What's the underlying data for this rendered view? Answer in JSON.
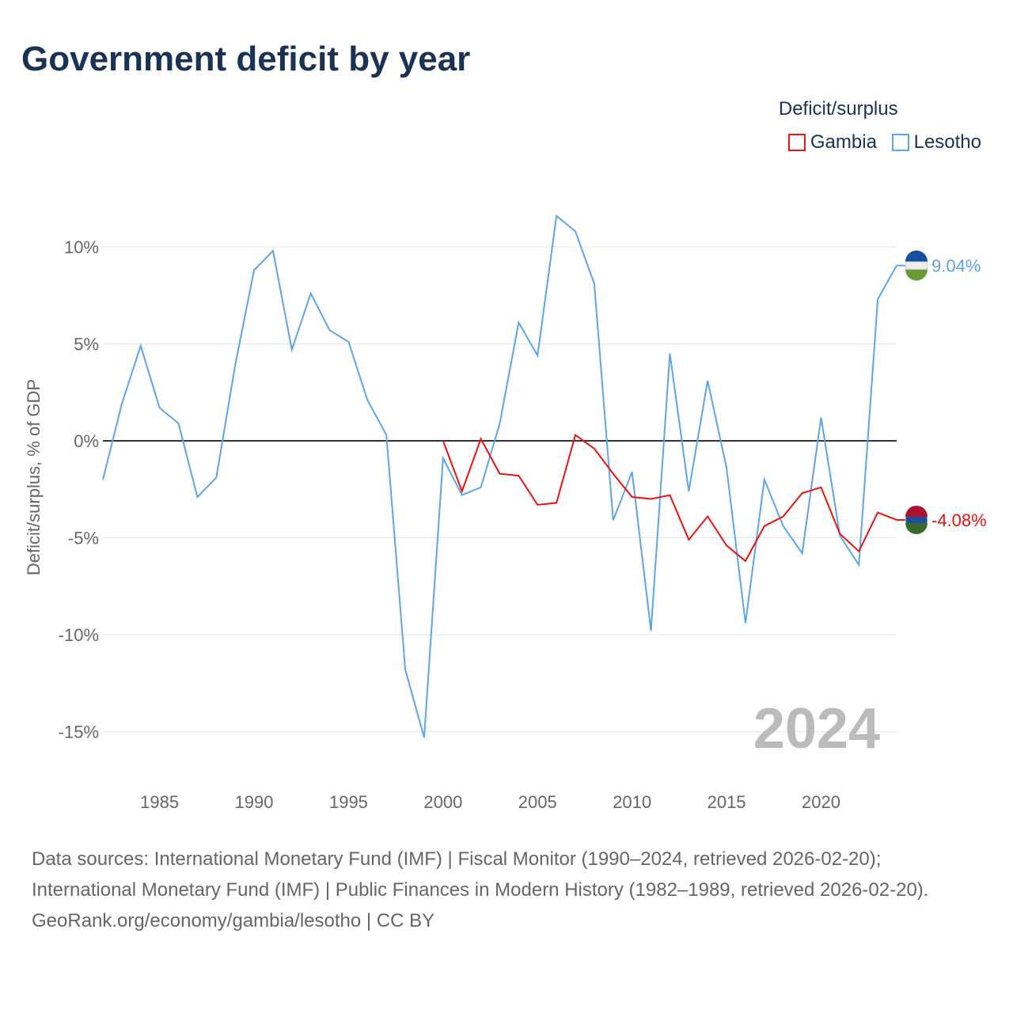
{
  "title": "Government deficit by year",
  "legend": {
    "title": "Deficit/surplus",
    "items": [
      "Gambia",
      "Lesotho"
    ]
  },
  "footer": {
    "sources": "Data sources: International Monetary Fund (IMF) | Fiscal Monitor (1990–2024, retrieved 2026-02-20); International Monetary Fund (IMF) | Public Finances in Modern History (1982–1989, retrieved 2026-02-20).",
    "credit": "GeoRank.org/economy/gambia/lesotho | CC BY"
  },
  "chart_data": {
    "type": "line",
    "title": "Government deficit by year",
    "ylabel": "Deficit/surplus, % of GDP",
    "xlim": [
      1982,
      2024
    ],
    "ylim": [
      -17,
      12
    ],
    "xticks": [
      1985,
      1990,
      1995,
      2000,
      2005,
      2010,
      2015,
      2020
    ],
    "yticks": [
      {
        "v": 10,
        "l": "10%"
      },
      {
        "v": 5,
        "l": "5%"
      },
      {
        "v": 0,
        "l": "0%"
      },
      {
        "v": -5,
        "l": "-5%"
      },
      {
        "v": -10,
        "l": "-10%"
      },
      {
        "v": -15,
        "l": "-15%"
      }
    ],
    "year_label": "2024",
    "series": [
      {
        "name": "Lesotho",
        "color": "#5da5ea",
        "end_label": "9.04%",
        "start": 1982,
        "values": [
          -2.0,
          1.9,
          4.9,
          1.7,
          0.9,
          -2.9,
          -1.9,
          3.9,
          8.8,
          9.8,
          4.7,
          7.6,
          5.7,
          5.1,
          2.1,
          0.3,
          -11.8,
          -15.3,
          -0.9,
          -2.8,
          -2.4,
          0.9,
          6.1,
          4.4,
          11.6,
          10.8,
          8.1,
          -4.1,
          -1.6,
          -9.8,
          4.5,
          -2.6,
          3.1,
          -1.4,
          -9.4,
          -2.0,
          -4.4,
          -5.8,
          1.2,
          -4.9,
          -6.4,
          7.3,
          9.04
        ]
      },
      {
        "name": "Gambia",
        "color": "#ee1111",
        "end_label": "-4.08%",
        "start": 2000,
        "values": [
          0.0,
          -2.6,
          0.1,
          -1.7,
          -1.8,
          -3.3,
          -3.2,
          0.3,
          -0.4,
          -1.7,
          -2.9,
          -3.0,
          -2.8,
          -5.1,
          -3.9,
          -5.4,
          -6.2,
          -4.4,
          -3.9,
          -2.7,
          -2.4,
          -4.8,
          -5.7,
          -3.7,
          -4.08
        ]
      }
    ]
  }
}
